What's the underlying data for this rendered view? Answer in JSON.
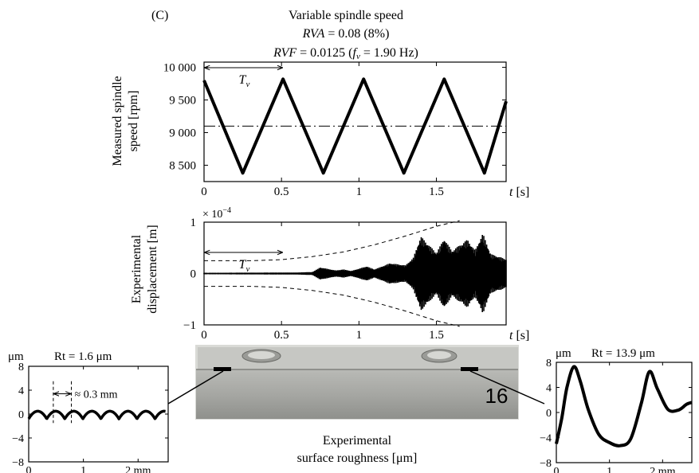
{
  "header": {
    "panel_label": "(C)",
    "title": "Variable spindle speed",
    "rva_name": "RVA",
    "rva_value": " = 0.08 (8%)",
    "rvf_name": "RVF",
    "rvf_value": " = 0.0125 (",
    "fv_symbol": "f",
    "fv_sub": "v",
    "fv_value": " = 1.90 Hz)"
  },
  "photo": {
    "sample_number": "16",
    "caption_line1": "Experimental",
    "caption_line2": "surface roughness [μm]",
    "colors": {
      "top": "#c6c7c3",
      "front": "#a7a8a4",
      "number": "#9c1c1c"
    }
  },
  "chart_data": [
    {
      "id": "spindle_speed",
      "type": "line",
      "ylabel_line1": "Measured spindle",
      "ylabel_line2": "speed [rpm]",
      "xlabel_symbol": "t",
      "xlabel_unit": " [s]",
      "xlim": [
        0,
        1.95
      ],
      "ylim": [
        8250,
        10080
      ],
      "x_ticks": [
        "0",
        "0.5",
        "1",
        "1.5"
      ],
      "x_tick_values": [
        0,
        0.5,
        1,
        1.5
      ],
      "y_ticks": [
        "8 500",
        "9 000",
        "9 500",
        "10 000"
      ],
      "y_tick_values": [
        8500,
        9000,
        9500,
        10000
      ],
      "mean_line": 9100,
      "series": {
        "x": [
          0,
          0.25,
          0.51,
          0.77,
          1.03,
          1.29,
          1.55,
          1.81,
          1.95
        ],
        "y": [
          9800,
          8380,
          9820,
          8380,
          9820,
          8380,
          9820,
          8380,
          9480
        ]
      },
      "period_label_symbol": "T",
      "period_label_sub": "v",
      "period_arrow": [
        0,
        0.51
      ]
    },
    {
      "id": "displacement",
      "type": "area",
      "ylabel_line1": "Experimental",
      "ylabel_line2": "displacement [m]",
      "scale_base": "× 10",
      "scale_exp": "−4",
      "xlabel_symbol": "t",
      "xlabel_unit": " [s]",
      "xlim": [
        0,
        1.95
      ],
      "ylim": [
        -1,
        1
      ],
      "x_ticks": [
        "0",
        "0.5",
        "1",
        "1.5"
      ],
      "x_tick_values": [
        0,
        0.5,
        1,
        1.5
      ],
      "y_ticks": [
        "−1",
        "0",
        "1"
      ],
      "y_tick_values": [
        -1,
        0,
        1
      ],
      "envelope": {
        "x": [
          0,
          0.3,
          0.5,
          0.7,
          0.9,
          1.1,
          1.3,
          1.5,
          1.65
        ],
        "y": [
          0.25,
          0.25,
          0.27,
          0.33,
          0.42,
          0.56,
          0.73,
          0.92,
          1.03
        ]
      },
      "signal_envelope": {
        "x": [
          0,
          0.6,
          0.7,
          0.75,
          0.85,
          0.9,
          0.95,
          1.05,
          1.1,
          1.2,
          1.3,
          1.35,
          1.4,
          1.5,
          1.55,
          1.6,
          1.7,
          1.75,
          1.8,
          1.85,
          1.95
        ],
        "y": [
          0.015,
          0.02,
          0.03,
          0.12,
          0.06,
          0.08,
          0.05,
          0.14,
          0.08,
          0.2,
          0.16,
          0.3,
          0.72,
          0.4,
          0.68,
          0.44,
          0.66,
          0.45,
          0.78,
          0.38,
          0.28
        ]
      },
      "period_label_symbol": "T",
      "period_label_sub": "v",
      "period_arrow": [
        0,
        0.51
      ]
    },
    {
      "id": "roughness_left",
      "type": "line",
      "unit_label": "μm",
      "rt_label": "Rt = 1.6 μm",
      "xlim": [
        0,
        2.55
      ],
      "ylim": [
        -8,
        8
      ],
      "x_ticks": [
        "0",
        "1",
        "2 mm"
      ],
      "x_tick_values": [
        0,
        1,
        2
      ],
      "y_ticks": [
        "−8",
        "−4",
        "0",
        "4",
        "8"
      ],
      "y_tick_values": [
        -8,
        -4,
        0,
        4,
        8
      ],
      "series": {
        "amplitude": 0.8,
        "period": 0.33,
        "x_end": 2.5
      },
      "annotation": "≈ 0.3 mm"
    },
    {
      "id": "roughness_right",
      "type": "line",
      "unit_label": "μm",
      "rt_label": "Rt = 13.9 μm",
      "xlim": [
        0,
        2.55
      ],
      "ylim": [
        -8,
        8
      ],
      "x_ticks": [
        "0",
        "1",
        "2 mm"
      ],
      "x_tick_values": [
        0,
        1,
        2
      ],
      "y_ticks": [
        "−8",
        "−4",
        "0",
        "4",
        "8"
      ],
      "y_tick_values": [
        -8,
        -4,
        0,
        4,
        8
      ],
      "series": {
        "x": [
          0,
          0.1,
          0.2,
          0.33,
          0.45,
          0.6,
          0.8,
          1.0,
          1.2,
          1.4,
          1.6,
          1.75,
          1.9,
          2.1,
          2.3,
          2.45,
          2.55
        ],
        "y": [
          -5,
          -1,
          4,
          7.3,
          5,
          0.5,
          -3.5,
          -4.8,
          -5.3,
          -4.2,
          1.5,
          6.5,
          3.8,
          0.5,
          0.4,
          1.3,
          1.6
        ]
      }
    }
  ]
}
